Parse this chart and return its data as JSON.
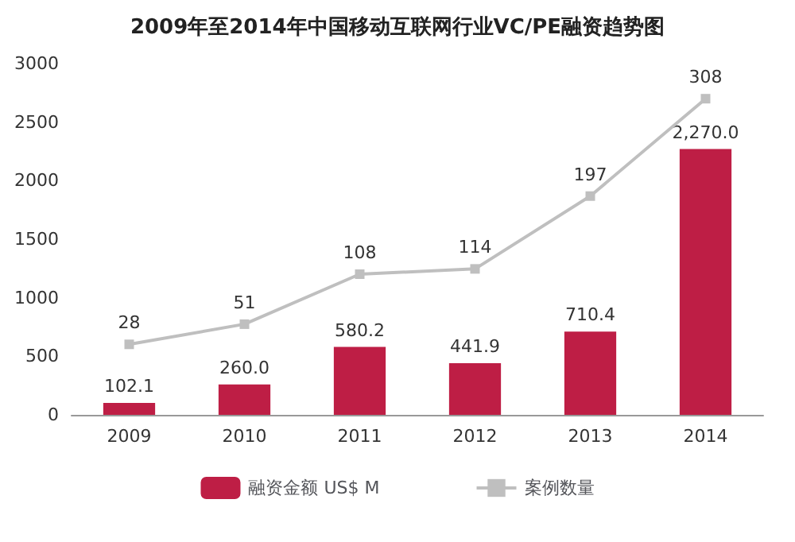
{
  "chart_data": {
    "type": "bar",
    "title": "2009年至2014年中国移动互联网行业VC/PE融资趋势图",
    "categories": [
      "2009",
      "2010",
      "2011",
      "2012",
      "2013",
      "2014"
    ],
    "series": [
      {
        "name": "融资金额 US$ M",
        "color": "#be1e45",
        "values": [
          102.1,
          260.0,
          580.2,
          441.9,
          710.4,
          2270.0
        ],
        "value_labels": [
          "102.1",
          "260.0",
          "580.2",
          "441.9",
          "710.4",
          "2,270.0"
        ]
      },
      {
        "name": "案例数量",
        "type": "line",
        "axis": "y2",
        "color": "#bfbfbf",
        "values": [
          28,
          51,
          108,
          114,
          197,
          308
        ],
        "value_labels": [
          "28",
          "51",
          "108",
          "114",
          "197",
          "308"
        ]
      }
    ],
    "ylim": [
      0,
      3000
    ],
    "yticks": [
      0,
      500,
      1000,
      1500,
      2000,
      2500,
      3000
    ],
    "tick_labels": "xy",
    "grid": false,
    "legend": "bottom",
    "marker": "square",
    "line_style": "solid"
  }
}
